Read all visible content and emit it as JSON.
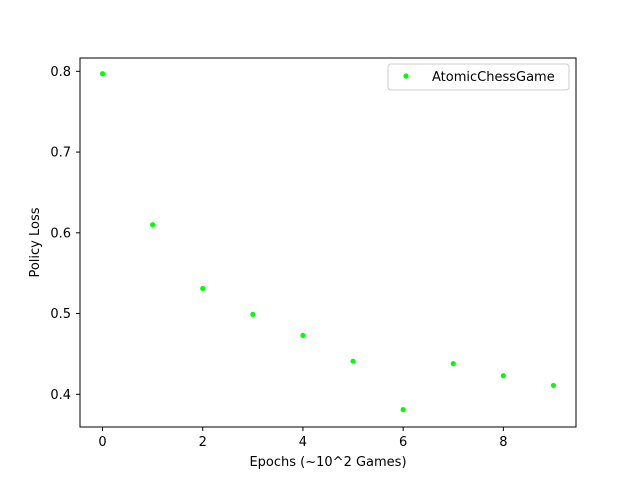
{
  "chart_data": {
    "type": "scatter",
    "title": "",
    "xlabel": "Epochs (~10^2 Games)",
    "ylabel": "Policy Loss",
    "xlim": [
      -0.45,
      9.45
    ],
    "ylim": [
      0.3595,
      0.8165
    ],
    "xticks": [
      0,
      2,
      4,
      6,
      8
    ],
    "yticks": [
      0.4,
      0.5,
      0.6,
      0.7,
      0.8
    ],
    "xtick_labels": [
      "0",
      "2",
      "4",
      "6",
      "8"
    ],
    "ytick_labels": [
      "0.4",
      "0.5",
      "0.6",
      "0.7",
      "0.8"
    ],
    "grid": false,
    "legend_position": "top-right",
    "series": [
      {
        "name": "AtomicChessGame",
        "color": "#00ff00",
        "x": [
          0,
          1,
          2,
          3,
          4,
          5,
          6,
          7,
          8,
          9
        ],
        "y": [
          0.797,
          0.61,
          0.531,
          0.499,
          0.473,
          0.441,
          0.381,
          0.438,
          0.423,
          0.411
        ]
      }
    ]
  }
}
